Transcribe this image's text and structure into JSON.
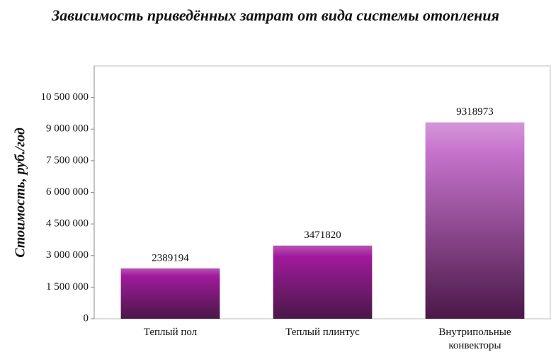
{
  "chart_data": {
    "type": "bar",
    "title": "Зависимость приведённых затрат от вида системы отопления",
    "y_label": "Стоимость, руб./год",
    "categories": [
      "Теплый пол",
      "Теплый плинтус",
      "Внутрипольные конвекторы"
    ],
    "values": [
      2389194,
      3471820,
      9318973
    ],
    "colors": [
      "#a01a9c",
      "#a01a9c",
      "#c673cc"
    ],
    "ylim": [
      0,
      12000000
    ],
    "yticks": [
      0,
      {
        "value": 1500000,
        "label": "1 500 000"
      },
      {
        "value": 3000000,
        "label": "3 000 000"
      },
      {
        "value": 4500000,
        "label": "4 500 000"
      },
      {
        "value": 6000000,
        "label": "6 000 000"
      },
      {
        "value": 7500000,
        "label": "7 500 000"
      },
      {
        "value": 9000000,
        "label": "9 000 000"
      },
      {
        "value": 10500000,
        "label": "10 500 000"
      }
    ],
    "grid": false
  }
}
